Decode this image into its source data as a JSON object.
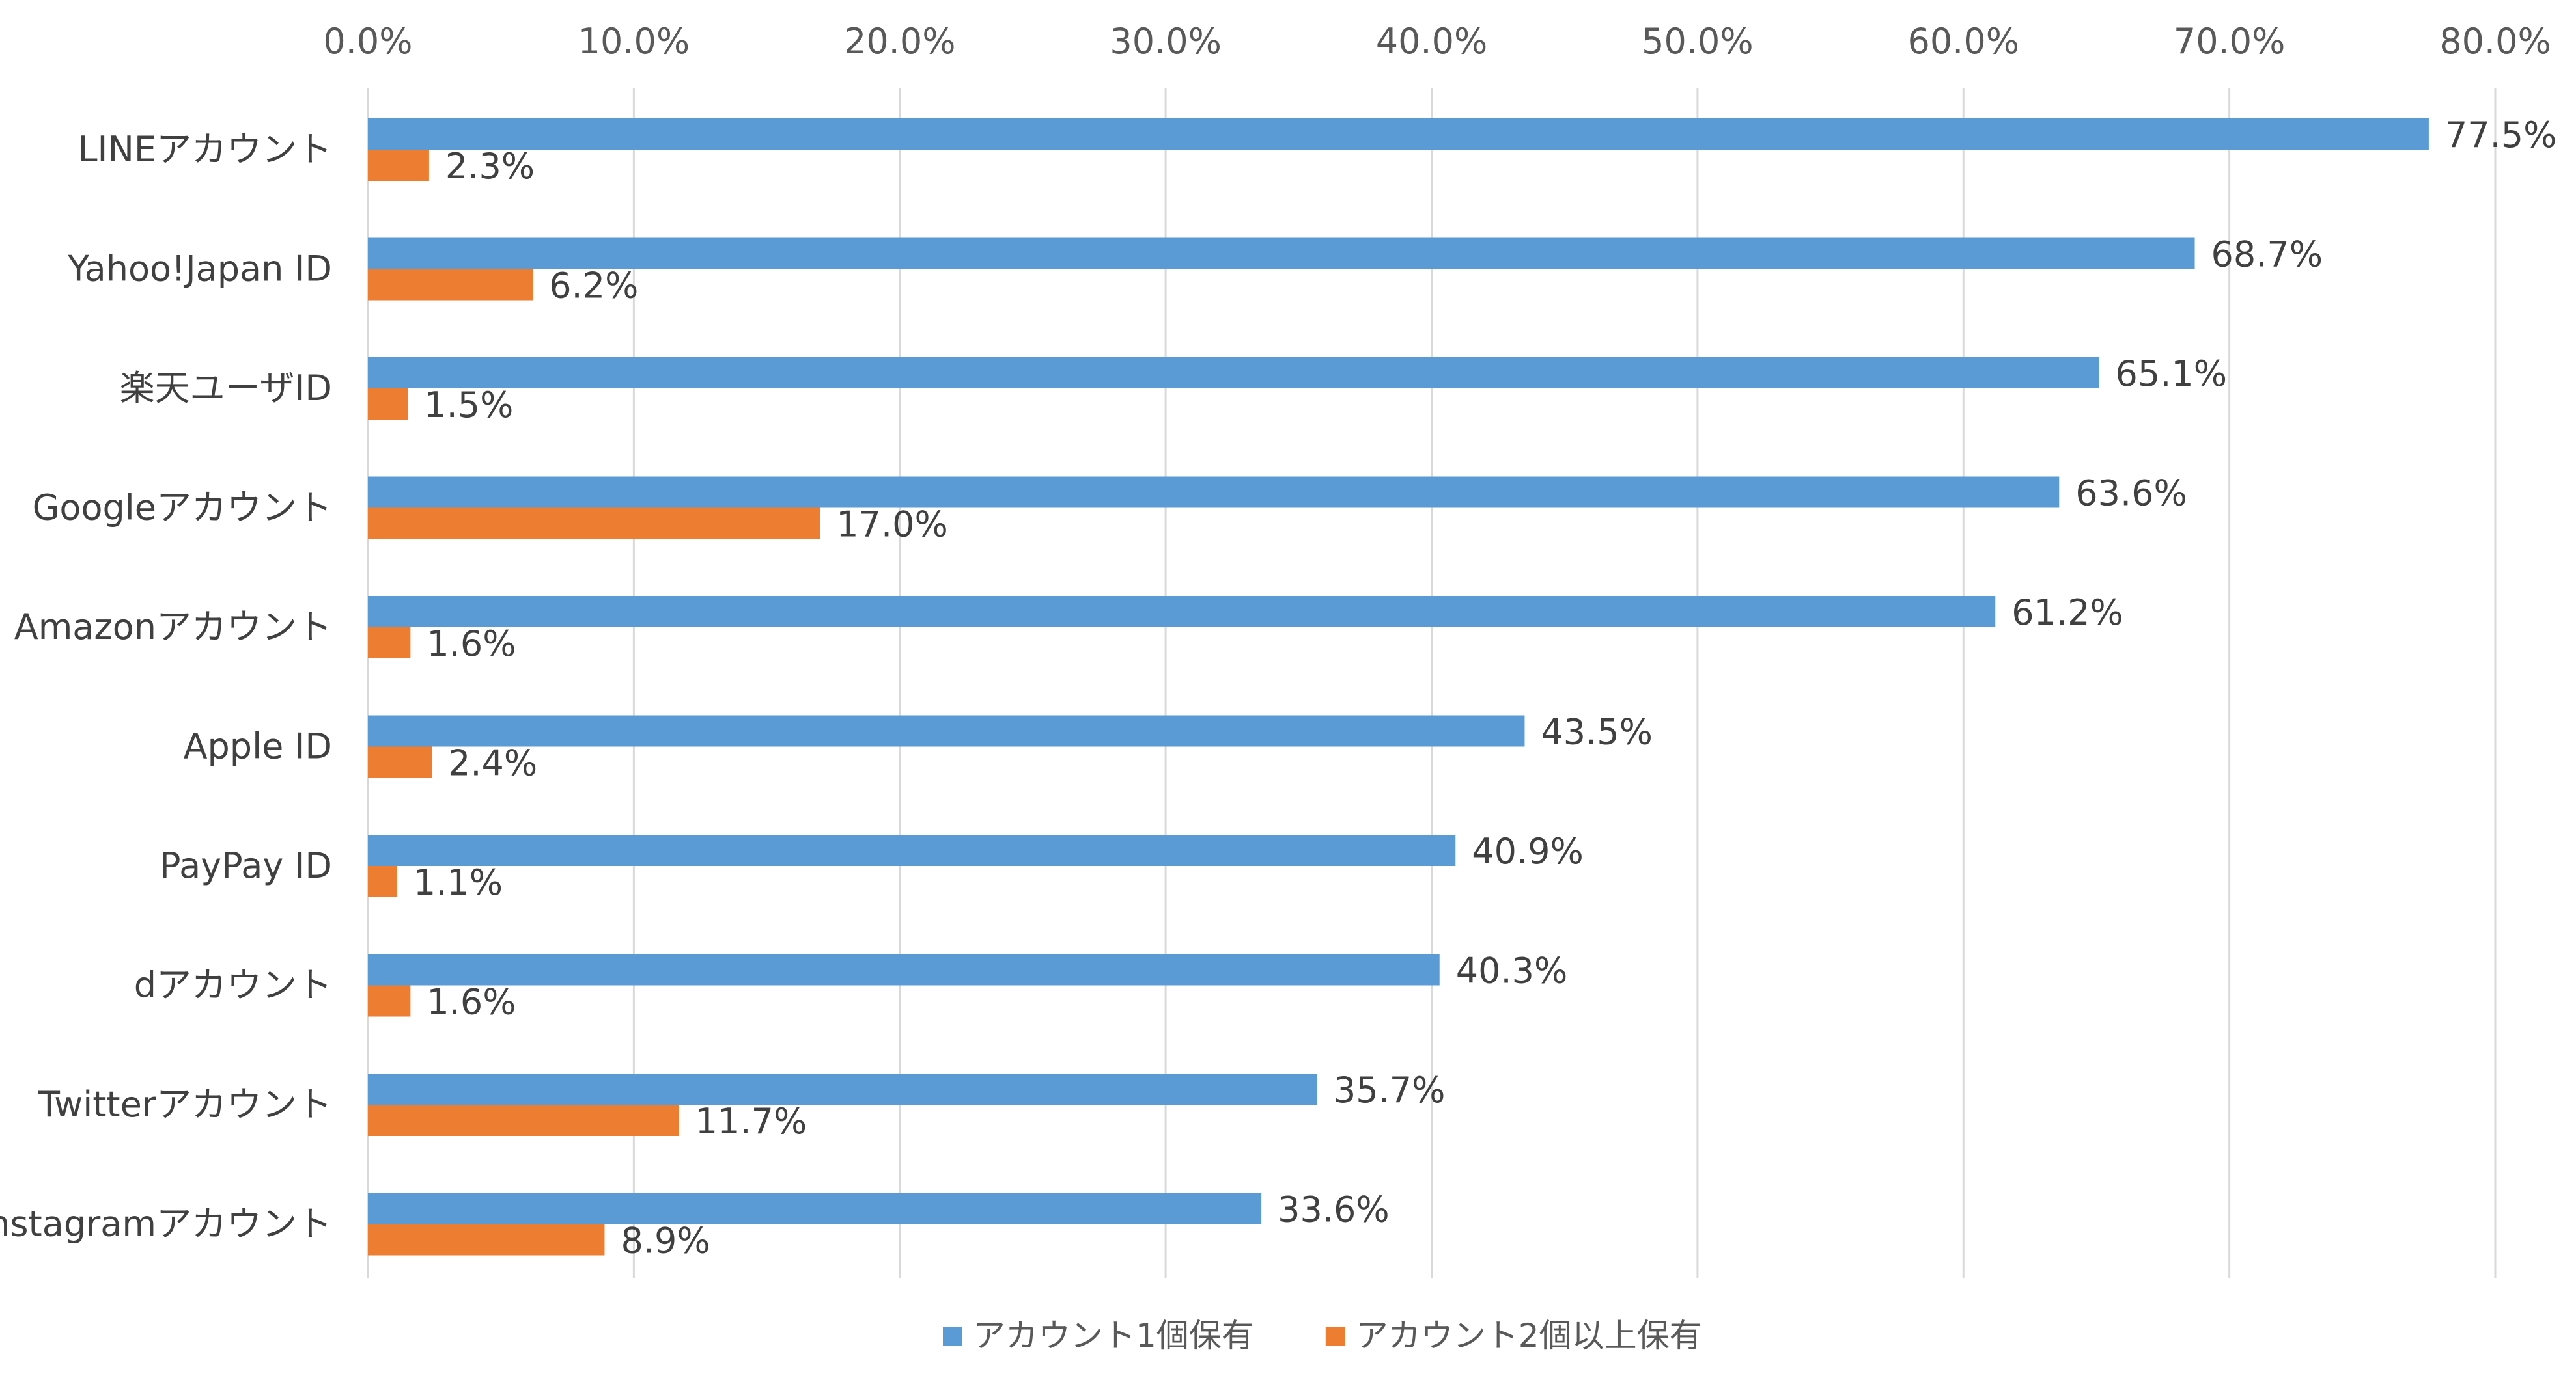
{
  "chart_data": {
    "type": "bar",
    "orientation": "horizontal",
    "categories": [
      "LINEアカウント",
      "Yahoo!Japan ID",
      "楽天ユーザID",
      "Googleアカウント",
      "Amazonアカウント",
      "Apple ID",
      "PayPay ID",
      "dアカウント",
      "Twitterアカウント",
      "Instagramアカウント"
    ],
    "series": [
      {
        "name": "アカウント1個保有",
        "color": "#5b9bd5",
        "values": [
          77.5,
          68.7,
          65.1,
          63.6,
          61.2,
          43.5,
          40.9,
          40.3,
          35.7,
          33.6
        ],
        "labels": [
          "77.5%",
          "68.7%",
          "65.1%",
          "63.6%",
          "61.2%",
          "43.5%",
          "40.9%",
          "40.3%",
          "35.7%",
          "33.6%"
        ]
      },
      {
        "name": "アカウント2個以上保有",
        "color": "#ed7d31",
        "values": [
          2.3,
          6.2,
          1.5,
          17.0,
          1.6,
          2.4,
          1.1,
          1.6,
          11.7,
          8.9
        ],
        "labels": [
          "2.3%",
          "6.2%",
          "1.5%",
          "17.0%",
          "1.6%",
          "2.4%",
          "1.1%",
          "1.6%",
          "11.7%",
          "8.9%"
        ]
      }
    ],
    "xlim": [
      0,
      80
    ],
    "x_ticks": [
      0,
      10,
      20,
      30,
      40,
      50,
      60,
      70,
      80
    ],
    "x_tick_labels": [
      "0.0%",
      "10.0%",
      "20.0%",
      "30.0%",
      "40.0%",
      "50.0%",
      "60.0%",
      "70.0%",
      "80.0%"
    ],
    "x_axis_position": "top",
    "grid": true,
    "legend_position": "bottom"
  }
}
